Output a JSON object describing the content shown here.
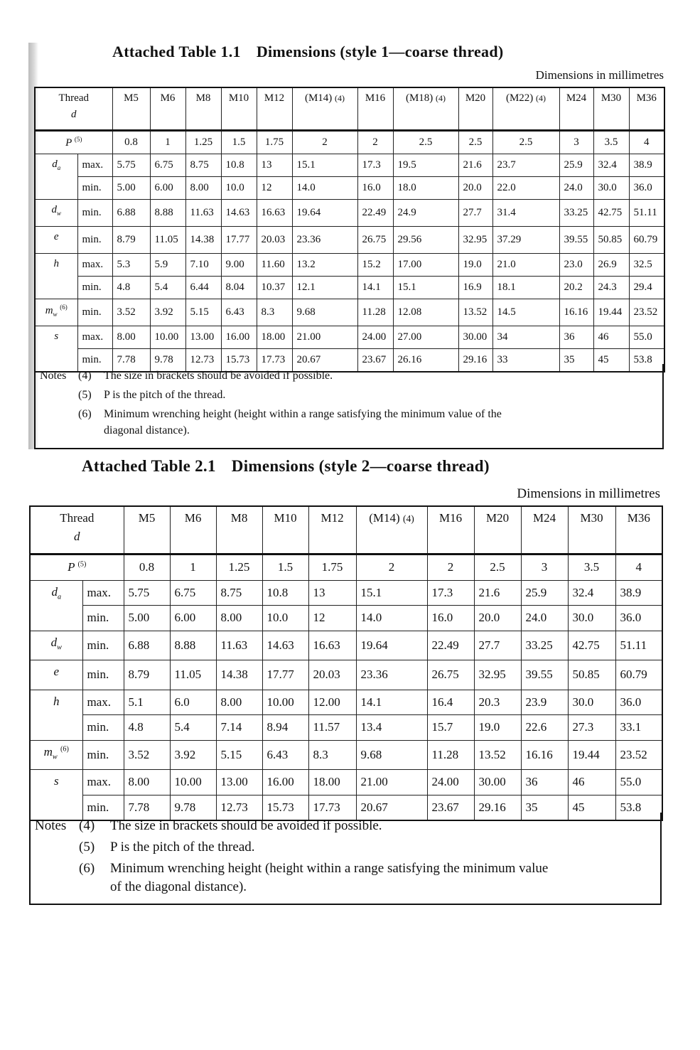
{
  "table1": {
    "title_number": "Attached Table 1.1",
    "title_text": "Dimensions (style 1—coarse thread)",
    "units": "Dimensions in millimetres",
    "thread_label": "Thread",
    "thread_symbol": "d",
    "columns": [
      {
        "label": "M5",
        "note": ""
      },
      {
        "label": "M6",
        "note": ""
      },
      {
        "label": "M8",
        "note": ""
      },
      {
        "label": "M10",
        "note": ""
      },
      {
        "label": "M12",
        "note": ""
      },
      {
        "label": "(M14)",
        "note": "(4)"
      },
      {
        "label": "M16",
        "note": ""
      },
      {
        "label": "(M18)",
        "note": "(4)"
      },
      {
        "label": "M20",
        "note": ""
      },
      {
        "label": "(M22)",
        "note": "(4)"
      },
      {
        "label": "M24",
        "note": ""
      },
      {
        "label": "M30",
        "note": ""
      },
      {
        "label": "M36",
        "note": ""
      }
    ],
    "rows": [
      {
        "sym": "P",
        "sub": "",
        "note": "(5)",
        "qual": "",
        "values": [
          "0.8",
          "1",
          "1.25",
          "1.5",
          "1.75",
          "2",
          "2",
          "2.5",
          "2.5",
          "2.5",
          "3",
          "3.5",
          "4"
        ]
      },
      {
        "sym": "d",
        "sub": "a",
        "note": "",
        "qual": "max.",
        "values": [
          "5.75",
          "6.75",
          "8.75",
          "10.8",
          "13",
          "15.1",
          "17.3",
          "19.5",
          "21.6",
          "23.7",
          "25.9",
          "32.4",
          "38.9"
        ]
      },
      {
        "sym": "",
        "sub": "",
        "note": "",
        "qual": "min.",
        "values": [
          "5.00",
          "6.00",
          "8.00",
          "10.0",
          "12",
          "14.0",
          "16.0",
          "18.0",
          "20.0",
          "22.0",
          "24.0",
          "30.0",
          "36.0"
        ]
      },
      {
        "sym": "d",
        "sub": "w",
        "note": "",
        "qual": "min.",
        "values": [
          "6.88",
          "8.88",
          "11.63",
          "14.63",
          "16.63",
          "19.64",
          "22.49",
          "24.9",
          "27.7",
          "31.4",
          "33.25",
          "42.75",
          "51.11"
        ]
      },
      {
        "sym": "e",
        "sub": "",
        "note": "",
        "qual": "min.",
        "values": [
          "8.79",
          "11.05",
          "14.38",
          "17.77",
          "20.03",
          "23.36",
          "26.75",
          "29.56",
          "32.95",
          "37.29",
          "39.55",
          "50.85",
          "60.79"
        ]
      },
      {
        "sym": "h",
        "sub": "",
        "note": "",
        "qual": "max.",
        "values": [
          "5.3",
          "5.9",
          "7.10",
          "9.00",
          "11.60",
          "13.2",
          "15.2",
          "17.00",
          "19.0",
          "21.0",
          "23.0",
          "26.9",
          "32.5"
        ]
      },
      {
        "sym": "",
        "sub": "",
        "note": "",
        "qual": "min.",
        "values": [
          "4.8",
          "5.4",
          "6.44",
          "8.04",
          "10.37",
          "12.1",
          "14.1",
          "15.1",
          "16.9",
          "18.1",
          "20.2",
          "24.3",
          "29.4"
        ]
      },
      {
        "sym": "m",
        "sub": "w",
        "note": "(6)",
        "qual": "min.",
        "values": [
          "3.52",
          "3.92",
          "5.15",
          "6.43",
          "8.3",
          "9.68",
          "11.28",
          "12.08",
          "13.52",
          "14.5",
          "16.16",
          "19.44",
          "23.52"
        ]
      },
      {
        "sym": "s",
        "sub": "",
        "note": "",
        "qual": "max.",
        "values": [
          "8.00",
          "10.00",
          "13.00",
          "16.00",
          "18.00",
          "21.00",
          "24.00",
          "27.00",
          "30.00",
          "34",
          "36",
          "46",
          "55.0"
        ]
      },
      {
        "sym": "",
        "sub": "",
        "note": "",
        "qual": "min.",
        "values": [
          "7.78",
          "9.78",
          "12.73",
          "15.73",
          "17.73",
          "20.67",
          "23.67",
          "26.16",
          "29.16",
          "33",
          "35",
          "45",
          "53.8"
        ]
      }
    ],
    "notes_label": "Notes",
    "notes": [
      {
        "marker": "(4)",
        "text": "The size in brackets should be avoided if possible."
      },
      {
        "marker": "(5)",
        "text": "P is the pitch of the thread."
      },
      {
        "marker": "(6)",
        "text": "Minimum wrenching height (height within a range satisfying the minimum value of the",
        "text2": "diagonal distance)."
      }
    ]
  },
  "table2": {
    "title_number": "Attached Table 2.1",
    "title_text": "Dimensions (style 2—coarse thread)",
    "units": "Dimensions in millimetres",
    "thread_label": "Thread",
    "thread_symbol": "d",
    "columns": [
      {
        "label": "M5",
        "note": ""
      },
      {
        "label": "M6",
        "note": ""
      },
      {
        "label": "M8",
        "note": ""
      },
      {
        "label": "M10",
        "note": ""
      },
      {
        "label": "M12",
        "note": ""
      },
      {
        "label": "(M14)",
        "note": "(4)"
      },
      {
        "label": "M16",
        "note": ""
      },
      {
        "label": "M20",
        "note": ""
      },
      {
        "label": "M24",
        "note": ""
      },
      {
        "label": "M30",
        "note": ""
      },
      {
        "label": "M36",
        "note": ""
      }
    ],
    "rows": [
      {
        "sym": "P",
        "sub": "",
        "note": "(5)",
        "qual": "",
        "values": [
          "0.8",
          "1",
          "1.25",
          "1.5",
          "1.75",
          "2",
          "2",
          "2.5",
          "3",
          "3.5",
          "4"
        ]
      },
      {
        "sym": "d",
        "sub": "a",
        "note": "",
        "qual": "max.",
        "values": [
          "5.75",
          "6.75",
          "8.75",
          "10.8",
          "13",
          "15.1",
          "17.3",
          "21.6",
          "25.9",
          "32.4",
          "38.9"
        ]
      },
      {
        "sym": "",
        "sub": "",
        "note": "",
        "qual": "min.",
        "values": [
          "5.00",
          "6.00",
          "8.00",
          "10.0",
          "12",
          "14.0",
          "16.0",
          "20.0",
          "24.0",
          "30.0",
          "36.0"
        ]
      },
      {
        "sym": "d",
        "sub": "w",
        "note": "",
        "qual": "min.",
        "values": [
          "6.88",
          "8.88",
          "11.63",
          "14.63",
          "16.63",
          "19.64",
          "22.49",
          "27.7",
          "33.25",
          "42.75",
          "51.11"
        ]
      },
      {
        "sym": "e",
        "sub": "",
        "note": "",
        "qual": "min.",
        "values": [
          "8.79",
          "11.05",
          "14.38",
          "17.77",
          "20.03",
          "23.36",
          "26.75",
          "32.95",
          "39.55",
          "50.85",
          "60.79"
        ]
      },
      {
        "sym": "h",
        "sub": "",
        "note": "",
        "qual": "max.",
        "values": [
          "5.1",
          "6.0",
          "8.00",
          "10.00",
          "12.00",
          "14.1",
          "16.4",
          "20.3",
          "23.9",
          "30.0",
          "36.0"
        ]
      },
      {
        "sym": "",
        "sub": "",
        "note": "",
        "qual": "min.",
        "values": [
          "4.8",
          "5.4",
          "7.14",
          "8.94",
          "11.57",
          "13.4",
          "15.7",
          "19.0",
          "22.6",
          "27.3",
          "33.1"
        ]
      },
      {
        "sym": "m",
        "sub": "w",
        "note": "(6)",
        "qual": "min.",
        "values": [
          "3.52",
          "3.92",
          "5.15",
          "6.43",
          "8.3",
          "9.68",
          "11.28",
          "13.52",
          "16.16",
          "19.44",
          "23.52"
        ]
      },
      {
        "sym": "s",
        "sub": "",
        "note": "",
        "qual": "max.",
        "values": [
          "8.00",
          "10.00",
          "13.00",
          "16.00",
          "18.00",
          "21.00",
          "24.00",
          "30.00",
          "36",
          "46",
          "55.0"
        ]
      },
      {
        "sym": "",
        "sub": "",
        "note": "",
        "qual": "min.",
        "values": [
          "7.78",
          "9.78",
          "12.73",
          "15.73",
          "17.73",
          "20.67",
          "23.67",
          "29.16",
          "35",
          "45",
          "53.8"
        ]
      }
    ],
    "notes_label": "Notes",
    "notes": [
      {
        "marker": "(4)",
        "text": "The size in brackets should be avoided if possible."
      },
      {
        "marker": "(5)",
        "text": "P is the pitch of the thread."
      },
      {
        "marker": "(6)",
        "text": "Minimum wrenching height (height within a range satisfying the minimum value",
        "text2": "of the diagonal distance)."
      }
    ]
  }
}
